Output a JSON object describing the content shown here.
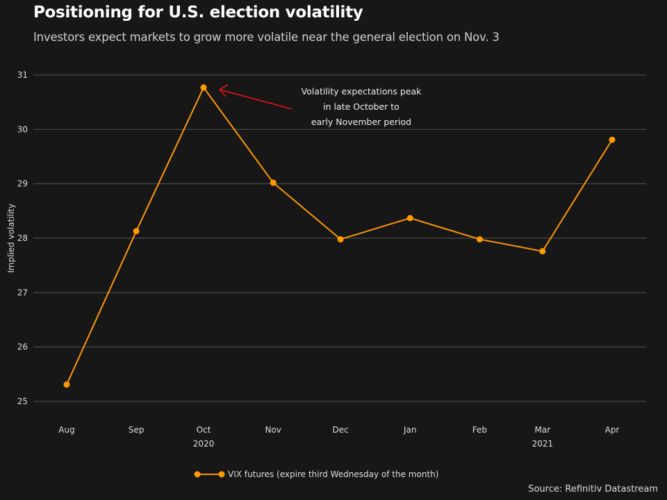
{
  "chart_data": {
    "type": "line",
    "title": "Positioning for U.S. election volatility",
    "subtitle": "Investors expect markets to grow more volatile near the general election on Nov. 3",
    "xlabel": "",
    "ylabel": "Implied volatility",
    "ylim": [
      25,
      31
    ],
    "yticks": [
      "25",
      "26",
      "27",
      "28",
      "29",
      "30",
      "31"
    ],
    "grid": "horizontal",
    "xticks": [
      {
        "date": "2020-08-01",
        "label": "Aug"
      },
      {
        "date": "2020-09-01",
        "label": "Sep"
      },
      {
        "date": "2020-10-01",
        "label": "Oct"
      },
      {
        "date": "2020-11-01",
        "label": "Nov"
      },
      {
        "date": "2020-12-01",
        "label": "Dec"
      },
      {
        "date": "2021-01-01",
        "label": "Jan"
      },
      {
        "date": "2021-02-01",
        "label": "Feb"
      },
      {
        "date": "2021-03-01",
        "label": "Mar"
      },
      {
        "date": "2021-04-01",
        "label": "Apr"
      }
    ],
    "year_labels": [
      {
        "date": "2020-10-01",
        "label": "2020"
      },
      {
        "date": "2021-03-01",
        "label": "2021"
      }
    ],
    "series": [
      {
        "name": "VIX futures (expire third Wednesday of the month)",
        "color": "#ff9900",
        "x": [
          "2020-08-01",
          "2020-09-01",
          "2020-10-01",
          "2020-11-01",
          "2020-12-01",
          "2021-01-01",
          "2021-02-01",
          "2021-03-01",
          "2021-04-01"
        ],
        "values": [
          25.31,
          28.13,
          30.77,
          29.02,
          27.98,
          28.37,
          27.98,
          27.76,
          29.81
        ]
      }
    ],
    "legend_position": "bottom-center",
    "annotation": {
      "lines": [
        "Volatility expectations peak",
        "in late October to",
        "early November period"
      ],
      "target_date": "2020-10-01",
      "arrow_color": "#e8101a"
    },
    "source": "Source: Refinitiv Datastream"
  }
}
